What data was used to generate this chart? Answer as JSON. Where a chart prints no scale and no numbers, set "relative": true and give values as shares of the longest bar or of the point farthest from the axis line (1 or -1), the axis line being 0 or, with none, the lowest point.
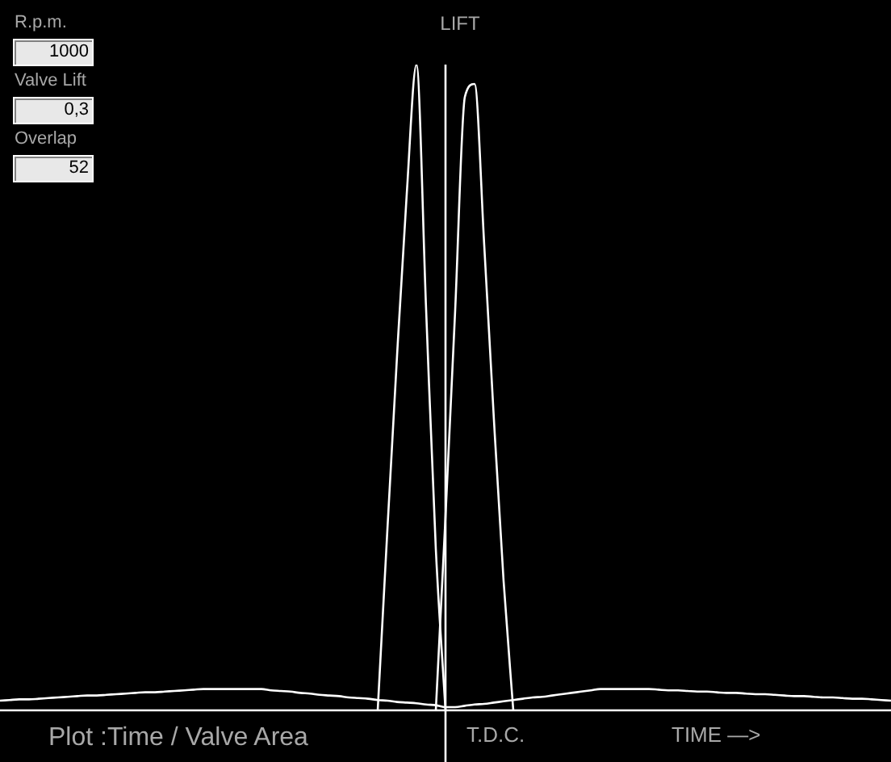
{
  "chart_data": {
    "type": "line",
    "title": "Plot :Time / Valve Area",
    "xlabel": "TIME —>",
    "ylabel": "LIFT",
    "annotations": [
      "R.p.m.",
      "1000",
      "Valve Lift",
      "0,3",
      "Overlap",
      "52",
      "T.D.C."
    ],
    "relative": true,
    "marker": "none",
    "categories": [
      null,
      null,
      null,
      null,
      null,
      null,
      null,
      null,
      null,
      null,
      null,
      null,
      null,
      null,
      null,
      null,
      null,
      null,
      null,
      null,
      null,
      null,
      null,
      null,
      null,
      null,
      null,
      null,
      null,
      null,
      null,
      null,
      null,
      null,
      null,
      null,
      null,
      null,
      null,
      null,
      null,
      null,
      null,
      null,
      null,
      null,
      null,
      null,
      null,
      null,
      null,
      null,
      null,
      null,
      null,
      null,
      null,
      null,
      null,
      null,
      null,
      null,
      null,
      null,
      null,
      null,
      null,
      null,
      null,
      null,
      null,
      null,
      null,
      null,
      null,
      null,
      null,
      null,
      null,
      null,
      null,
      null,
      null,
      null,
      null,
      null,
      null,
      null,
      null,
      null,
      null,
      null,
      null
    ],
    "series": [
      {
        "color": "#ffffff",
        "values": [
          null,
          null,
          null,
          null,
          null,
          null,
          null,
          null,
          null,
          null,
          null,
          null,
          null,
          null,
          null,
          null,
          null,
          null,
          null,
          null,
          null,
          null,
          null,
          null,
          null,
          null,
          null,
          null,
          null,
          null,
          null,
          null,
          null,
          null,
          null,
          null,
          null,
          null,
          null,
          0,
          0.28,
          0.55,
          0.8,
          1,
          0.62,
          0.25,
          0,
          null,
          null,
          null,
          null,
          null,
          null,
          null,
          null,
          null,
          null,
          null,
          null,
          null,
          null,
          null,
          null,
          null,
          null,
          null,
          null,
          null,
          null,
          null,
          null,
          null,
          null,
          null,
          null,
          null,
          null,
          null,
          null,
          null,
          null,
          null,
          null,
          null,
          null,
          null,
          null,
          null,
          null,
          null,
          null,
          null,
          null
        ]
      },
      {
        "color": "#ffffff",
        "values": [
          null,
          null,
          null,
          null,
          null,
          null,
          null,
          null,
          null,
          null,
          null,
          null,
          null,
          null,
          null,
          null,
          null,
          null,
          null,
          null,
          null,
          null,
          null,
          null,
          null,
          null,
          null,
          null,
          null,
          null,
          null,
          null,
          null,
          null,
          null,
          null,
          null,
          null,
          null,
          null,
          null,
          null,
          null,
          null,
          null,
          0,
          0.3,
          0.62,
          0.95,
          0.97,
          0.72,
          0.45,
          0.2,
          0,
          null,
          null,
          null,
          null,
          null,
          null,
          null,
          null,
          null,
          null,
          null,
          null,
          null,
          null,
          null,
          null,
          null,
          null,
          null,
          null,
          null,
          null,
          null,
          null,
          null,
          null,
          null,
          null,
          null,
          null,
          null,
          null,
          null,
          null,
          null,
          null,
          null,
          null,
          null
        ]
      },
      {
        "color": "#ffffff",
        "values": [
          0.015,
          0.016,
          0.017,
          0.017,
          0.018,
          0.019,
          0.02,
          0.021,
          0.022,
          0.023,
          0.023,
          0.024,
          0.025,
          0.026,
          0.027,
          0.028,
          0.028,
          0.029,
          0.03,
          0.031,
          0.032,
          0.033,
          0.033,
          0.033,
          0.033,
          0.033,
          0.033,
          0.033,
          0.031,
          0.03,
          0.029,
          0.027,
          0.026,
          0.024,
          0.023,
          0.022,
          0.02,
          0.019,
          0.018,
          0.016,
          0.015,
          0.013,
          0.012,
          0.011,
          0.009,
          0.008,
          0.005,
          0.005,
          0.007,
          0.009,
          0.01,
          0.012,
          0.014,
          0.016,
          0.018,
          0.02,
          0.021,
          0.023,
          0.025,
          0.027,
          0.029,
          0.031,
          0.033,
          0.033,
          0.033,
          0.033,
          0.033,
          0.033,
          0.032,
          0.031,
          0.031,
          0.03,
          0.029,
          0.029,
          0.028,
          0.027,
          0.027,
          0.026,
          0.025,
          0.025,
          0.024,
          0.023,
          0.022,
          0.022,
          0.021,
          0.02,
          0.02,
          0.019,
          0.018,
          0.018,
          0.017,
          0.016,
          0.015
        ]
      }
    ]
  }
}
